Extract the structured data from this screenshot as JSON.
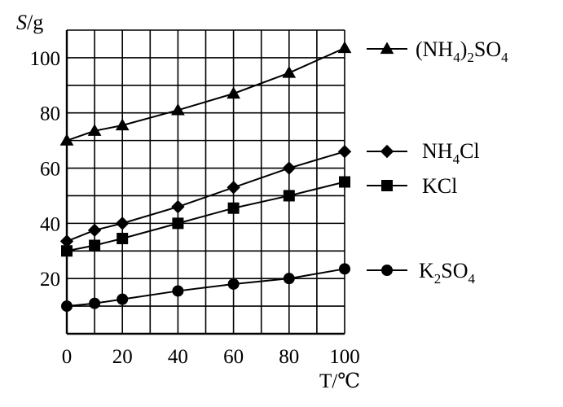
{
  "chart_data": {
    "type": "line",
    "ylabel_var": "S",
    "ylabel_unit": "/g",
    "xlabel": "T/℃",
    "xlim": [
      0,
      100
    ],
    "ylim": [
      0,
      110
    ],
    "grid": true,
    "x_ticks": [
      0,
      20,
      40,
      60,
      80,
      100
    ],
    "x_tick_labels": [
      "0",
      "20",
      "40",
      "60",
      "80",
      "100"
    ],
    "y_ticks": [
      20,
      40,
      60,
      80,
      100
    ],
    "y_tick_labels": [
      "20",
      "40",
      "60",
      "80",
      "100"
    ],
    "legend_placement": "right",
    "series": [
      {
        "key": "nh4_2so4",
        "name": "(NH4)2SO4",
        "marker": "triangle",
        "x": [
          0,
          10,
          20,
          40,
          60,
          80,
          100
        ],
        "values": [
          70,
          73.5,
          75.5,
          81,
          87,
          94.5,
          103.5
        ]
      },
      {
        "key": "nh4cl",
        "name": "NH4Cl",
        "marker": "diamond",
        "x": [
          0,
          10,
          20,
          40,
          60,
          80,
          100
        ],
        "values": [
          33.5,
          37.5,
          40,
          46,
          53,
          60,
          66
        ]
      },
      {
        "key": "kcl",
        "name": "KCl",
        "marker": "square",
        "x": [
          0,
          10,
          20,
          40,
          60,
          80,
          100
        ],
        "values": [
          30,
          32,
          34.5,
          40,
          45.5,
          50,
          55
        ]
      },
      {
        "key": "k2so4",
        "name": "K2SO4",
        "marker": "circle",
        "x": [
          0,
          10,
          20,
          40,
          60,
          80,
          100
        ],
        "values": [
          10,
          11,
          12.5,
          15.5,
          18,
          20,
          23.5
        ]
      }
    ]
  }
}
